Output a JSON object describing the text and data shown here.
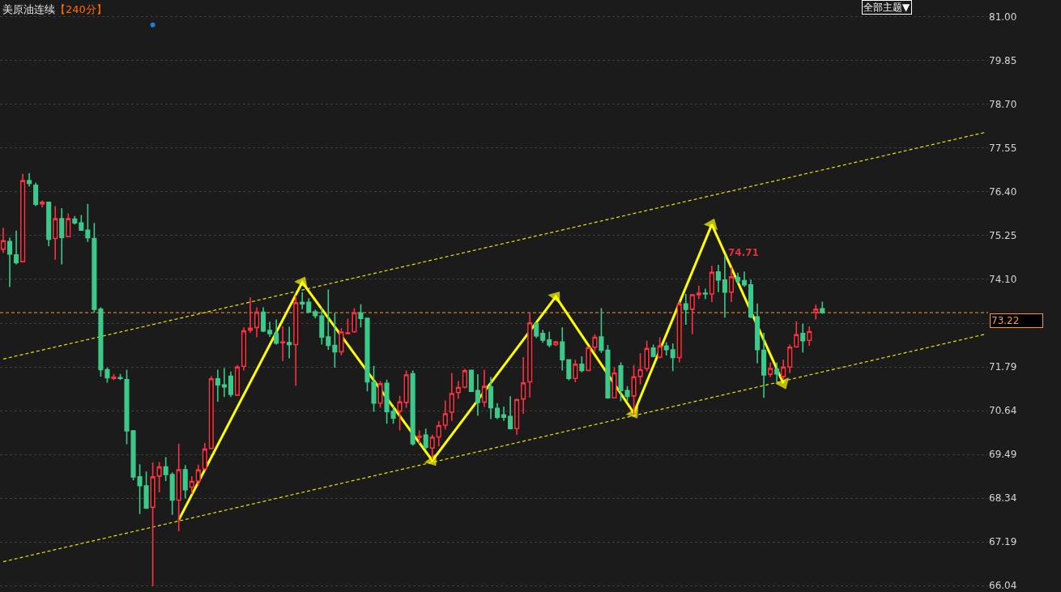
{
  "chart_data": {
    "type": "candlestick",
    "title": "美原油连续",
    "subtitle": "【240分】",
    "categories": [
      null,
      null,
      null,
      null,
      null,
      null,
      null,
      null,
      null,
      null,
      null,
      null,
      null,
      null,
      null,
      null,
      null,
      null,
      null,
      null,
      null,
      null,
      null,
      null,
      null,
      null,
      null,
      null,
      null,
      null,
      null,
      null,
      null,
      null,
      null,
      null,
      null,
      null,
      null,
      null,
      null,
      null,
      null,
      null,
      null,
      null,
      null,
      null,
      null,
      null,
      null,
      null,
      null,
      null,
      null,
      null,
      null,
      null,
      null,
      null,
      null,
      null,
      null,
      null,
      null,
      null,
      null,
      null,
      null,
      null,
      null,
      null,
      null,
      null,
      null,
      null,
      null,
      null,
      null,
      null,
      null,
      null,
      null,
      null,
      null,
      null,
      null,
      null,
      null,
      null,
      null,
      null,
      null,
      null,
      null,
      null,
      null,
      null,
      null,
      null,
      null,
      null,
      null,
      null,
      null,
      null,
      null,
      null,
      null,
      null,
      null,
      null,
      null,
      null,
      null,
      null,
      null,
      null,
      null,
      null,
      null,
      null,
      null,
      null,
      null,
      null,
      null,
      null,
      null,
      null,
      null,
      null,
      null,
      null,
      null,
      null,
      null,
      null,
      null,
      null,
      null,
      null,
      null,
      null,
      null,
      null,
      null,
      null,
      null,
      null,
      null,
      null
    ],
    "ohlc": [
      [
        74.89,
        75.45,
        74.79,
        75.11
      ],
      [
        75.09,
        75.19,
        73.9,
        74.76
      ],
      [
        74.74,
        75.38,
        74.49,
        74.54
      ],
      [
        74.56,
        76.87,
        74.54,
        76.69
      ],
      [
        76.69,
        76.89,
        76.54,
        76.62
      ],
      [
        76.57,
        76.64,
        76.02,
        76.07
      ],
      [
        76.08,
        76.17,
        75.99,
        76.12
      ],
      [
        76.12,
        76.12,
        74.97,
        75.15
      ],
      [
        75.17,
        76.02,
        74.61,
        75.69
      ],
      [
        75.69,
        75.97,
        74.49,
        75.2
      ],
      [
        75.22,
        75.83,
        75.2,
        75.69
      ],
      [
        75.68,
        75.76,
        75.54,
        75.58
      ],
      [
        75.58,
        75.79,
        75.38,
        75.39
      ],
      [
        75.39,
        76.08,
        75.08,
        75.19
      ],
      [
        75.17,
        75.58,
        73.22,
        73.31
      ],
      [
        73.31,
        73.36,
        71.54,
        71.72
      ],
      [
        71.72,
        71.78,
        71.38,
        71.51
      ],
      [
        71.49,
        71.61,
        71.45,
        71.52
      ],
      [
        71.51,
        71.61,
        71.45,
        71.49
      ],
      [
        71.46,
        71.72,
        69.76,
        70.11
      ],
      [
        70.11,
        70.13,
        68.81,
        68.9
      ],
      [
        68.9,
        69.23,
        67.92,
        68.67
      ],
      [
        68.66,
        69.04,
        68.06,
        68.08
      ],
      [
        68.1,
        69.28,
        66.02,
        68.9
      ],
      [
        68.92,
        69.29,
        68.49,
        69.16
      ],
      [
        69.16,
        69.42,
        68.79,
        68.96
      ],
      [
        68.96,
        69.02,
        67.9,
        68.29
      ],
      [
        68.29,
        69.77,
        67.47,
        69.09
      ],
      [
        69.09,
        69.21,
        68.33,
        68.56
      ],
      [
        68.63,
        68.92,
        68.45,
        68.78
      ],
      [
        68.79,
        69.22,
        68.66,
        69.08
      ],
      [
        69.11,
        69.79,
        69.08,
        69.63
      ],
      [
        69.65,
        71.55,
        69.64,
        71.48
      ],
      [
        71.48,
        71.72,
        70.88,
        71.32
      ],
      [
        71.32,
        71.76,
        71.0,
        71.27
      ],
      [
        71.55,
        71.67,
        71.0,
        71.07
      ],
      [
        71.05,
        71.84,
        71.03,
        71.79
      ],
      [
        71.81,
        72.83,
        71.7,
        72.74
      ],
      [
        72.76,
        73.62,
        72.69,
        72.81
      ],
      [
        72.83,
        73.36,
        72.57,
        73.23
      ],
      [
        73.23,
        73.36,
        72.71,
        72.74
      ],
      [
        72.75,
        72.98,
        72.58,
        72.67
      ],
      [
        72.67,
        73.04,
        72.38,
        72.42
      ],
      [
        72.43,
        72.86,
        71.95,
        72.45
      ],
      [
        72.43,
        72.85,
        72.02,
        72.38
      ],
      [
        72.38,
        73.67,
        71.3,
        73.48
      ],
      [
        73.49,
        73.76,
        73.31,
        73.45
      ],
      [
        73.49,
        73.6,
        73.21,
        73.24
      ],
      [
        73.24,
        73.3,
        73.07,
        73.14
      ],
      [
        73.13,
        73.37,
        72.38,
        72.58
      ],
      [
        72.58,
        73.83,
        72.24,
        72.36
      ],
      [
        72.36,
        73.21,
        71.77,
        72.19
      ],
      [
        72.19,
        72.81,
        72.1,
        72.71
      ],
      [
        72.67,
        73.06,
        72.67,
        72.69
      ],
      [
        72.72,
        73.34,
        72.69,
        73.21
      ],
      [
        73.21,
        73.44,
        72.83,
        73.07
      ],
      [
        73.07,
        73.09,
        71.15,
        71.4
      ],
      [
        71.39,
        71.82,
        70.61,
        70.84
      ],
      [
        70.84,
        71.42,
        70.72,
        71.35
      ],
      [
        71.36,
        71.46,
        70.3,
        70.62
      ],
      [
        70.62,
        70.75,
        70.3,
        70.45
      ],
      [
        70.63,
        71.03,
        70.12,
        70.87
      ],
      [
        70.86,
        71.7,
        70.72,
        71.58
      ],
      [
        71.61,
        71.7,
        69.72,
        69.77
      ],
      [
        69.94,
        70.12,
        69.77,
        69.97
      ],
      [
        70.0,
        70.17,
        69.63,
        69.68
      ],
      [
        69.66,
        70.01,
        69.36,
        69.94
      ],
      [
        69.95,
        70.37,
        69.7,
        70.25
      ],
      [
        70.26,
        70.91,
        70.15,
        70.56
      ],
      [
        70.6,
        71.63,
        70.37,
        71.09
      ],
      [
        71.12,
        71.42,
        70.95,
        71.25
      ],
      [
        71.26,
        71.74,
        71.23,
        71.69
      ],
      [
        71.7,
        71.72,
        71.14,
        71.15
      ],
      [
        71.17,
        71.6,
        70.51,
        70.86
      ],
      [
        70.87,
        71.72,
        70.74,
        71.28
      ],
      [
        71.27,
        71.53,
        70.42,
        70.72
      ],
      [
        70.7,
        70.84,
        70.42,
        70.47
      ],
      [
        70.53,
        70.75,
        70.37,
        70.47
      ],
      [
        70.49,
        71.02,
        70.15,
        70.17
      ],
      [
        70.17,
        70.96,
        70.01,
        70.93
      ],
      [
        70.95,
        72.05,
        70.56,
        71.37
      ],
      [
        71.4,
        73.21,
        70.99,
        72.95
      ],
      [
        72.93,
        72.97,
        72.55,
        72.61
      ],
      [
        72.67,
        72.77,
        72.43,
        72.5
      ],
      [
        72.5,
        72.72,
        72.31,
        72.37
      ],
      [
        72.38,
        72.48,
        72.34,
        72.45
      ],
      [
        72.45,
        72.83,
        71.7,
        71.98
      ],
      [
        71.98,
        71.99,
        71.44,
        71.49
      ],
      [
        71.49,
        71.98,
        71.39,
        71.86
      ],
      [
        71.86,
        72.07,
        71.65,
        71.7
      ],
      [
        71.7,
        72.3,
        71.68,
        72.3
      ],
      [
        72.31,
        72.65,
        72.19,
        72.57
      ],
      [
        72.58,
        73.34,
        72.16,
        72.23
      ],
      [
        72.23,
        72.37,
        70.96,
        70.98
      ],
      [
        70.98,
        71.79,
        70.97,
        71.63
      ],
      [
        71.82,
        71.91,
        70.89,
        71.17
      ],
      [
        71.17,
        71.29,
        70.89,
        71.02
      ],
      [
        71.03,
        71.84,
        70.54,
        71.53
      ],
      [
        71.54,
        72.15,
        71.33,
        71.72
      ],
      [
        71.75,
        72.48,
        71.67,
        72.28
      ],
      [
        72.29,
        72.38,
        72.05,
        72.07
      ],
      [
        72.05,
        72.57,
        72.02,
        72.34
      ],
      [
        72.34,
        72.44,
        72.09,
        72.25
      ],
      [
        72.24,
        72.41,
        71.68,
        72.04
      ],
      [
        72.04,
        73.51,
        71.91,
        73.44
      ],
      [
        73.45,
        73.71,
        72.9,
        73.31
      ],
      [
        73.31,
        73.71,
        72.65,
        73.69
      ],
      [
        73.69,
        73.93,
        73.58,
        73.73
      ],
      [
        73.73,
        73.85,
        73.58,
        73.71
      ],
      [
        73.71,
        74.45,
        73.5,
        74.28
      ],
      [
        74.29,
        74.48,
        73.76,
        74.08
      ],
      [
        74.08,
        74.71,
        73.09,
        73.76
      ],
      [
        73.76,
        74.41,
        73.5,
        74.16
      ],
      [
        74.14,
        74.27,
        73.99,
        74.06
      ],
      [
        74.06,
        74.3,
        73.9,
        73.95
      ],
      [
        73.95,
        74.09,
        73.07,
        73.11
      ],
      [
        73.11,
        73.46,
        71.89,
        72.25
      ],
      [
        72.23,
        72.69,
        70.98,
        71.58
      ],
      [
        71.6,
        71.91,
        71.53,
        71.75
      ],
      [
        71.73,
        71.91,
        71.39,
        71.61
      ],
      [
        71.54,
        71.98,
        71.46,
        71.79
      ],
      [
        71.79,
        72.38,
        71.63,
        72.31
      ],
      [
        72.32,
        72.99,
        72.3,
        72.64
      ],
      [
        72.67,
        72.93,
        72.17,
        72.48
      ],
      [
        72.49,
        72.86,
        72.35,
        72.72
      ],
      [
        73.23,
        73.43,
        73.04,
        73.31
      ],
      [
        73.32,
        73.51,
        73.19,
        73.22
      ],
      null,
      null,
      null,
      null,
      null,
      null,
      null,
      null,
      null,
      null,
      null,
      null,
      null,
      null,
      null,
      null,
      null,
      null,
      null,
      null,
      null,
      null,
      null,
      null,
      null
    ],
    "colors": [
      "#ff3040",
      "#3cc98a",
      "#3cc98a",
      "#ff3040",
      "#3cc98a",
      "#3cc98a",
      "#ff3040",
      "#3cc98a",
      "#ff3040",
      "#3cc98a",
      "#ff3040",
      "#3cc98a",
      "#3cc98a",
      "#3cc98a",
      "#3cc98a",
      "#3cc98a",
      "#3cc98a",
      "#ff3040",
      "#3cc98a",
      "#3cc98a",
      "#3cc98a",
      "#3cc98a",
      "#3cc98a",
      "#ff3040",
      "#ff3040",
      "#3cc98a",
      "#3cc98a",
      "#ff3040",
      "#3cc98a",
      "#ff3040",
      "#ff3040",
      "#ff3040",
      "#ff3040",
      "#3cc98a",
      "#3cc98a",
      "#3cc98a",
      "#ff3040",
      "#ff3040",
      "#ff3040",
      "#ff3040",
      "#3cc98a",
      "#3cc98a",
      "#3cc98a",
      "#ff3040",
      "#3cc98a",
      "#ff3040",
      "#3cc98a",
      "#3cc98a",
      "#3cc98a",
      "#3cc98a",
      "#3cc98a",
      "#3cc98a",
      "#ff3040",
      "#ff3040",
      "#ff3040",
      "#3cc98a",
      "#3cc98a",
      "#3cc98a",
      "#ff3040",
      "#3cc98a",
      "#3cc98a",
      "#ff3040",
      "#ff3040",
      "#3cc98a",
      "#ff3040",
      "#3cc98a",
      "#ff3040",
      "#ff3040",
      "#ff3040",
      "#ff3040",
      "#ff3040",
      "#ff3040",
      "#3cc98a",
      "#3cc98a",
      "#ff3040",
      "#3cc98a",
      "#3cc98a",
      "#3cc98a",
      "#3cc98a",
      "#ff3040",
      "#ff3040",
      "#ff3040",
      "#3cc98a",
      "#3cc98a",
      "#3cc98a",
      "#ff3040",
      "#3cc98a",
      "#3cc98a",
      "#ff3040",
      "#3cc98a",
      "#ff3040",
      "#ff3040",
      "#3cc98a",
      "#3cc98a",
      "#ff3040",
      "#3cc98a",
      "#3cc98a",
      "#ff3040",
      "#ff3040",
      "#ff3040",
      "#3cc98a",
      "#ff3040",
      "#3cc98a",
      "#3cc98a",
      "#ff3040",
      "#3cc98a",
      "#ff3040",
      "#ff3040",
      "#3cc98a",
      "#ff3040",
      "#3cc98a",
      "#3cc98a",
      "#ff3040",
      "#3cc98a",
      "#3cc98a",
      "#3cc98a",
      "#3cc98a",
      "#3cc98a",
      "#ff3040",
      "#3cc98a",
      "#ff3040",
      "#ff3040",
      "#ff3040",
      "#3cc98a",
      "#ff3040",
      "#ff3040",
      "#3cc98a",
      null,
      null,
      null,
      null,
      null,
      null,
      null,
      null,
      null,
      null,
      null,
      null,
      null,
      null,
      null,
      null,
      null,
      null,
      null,
      null,
      null,
      null,
      null,
      null,
      null
    ],
    "series": [
      {
        "type": "line",
        "color": "#e8e800",
        "line_style": "dashed",
        "values": [
          72.0,
          null,
          null,
          null,
          null,
          null,
          null,
          null,
          null,
          null,
          null,
          null,
          null,
          null,
          null,
          null,
          null,
          null,
          null,
          null,
          null,
          null,
          null,
          null,
          null,
          null,
          null,
          null,
          null,
          null,
          null,
          null,
          null,
          null,
          null,
          null,
          null,
          null,
          null,
          null,
          null,
          null,
          null,
          null,
          null,
          null,
          null,
          null,
          null,
          null,
          null,
          null,
          null,
          null,
          null,
          null,
          null,
          null,
          null,
          null,
          null,
          null,
          null,
          null,
          null,
          null,
          null,
          null,
          null,
          null,
          null,
          null,
          null,
          null,
          null,
          null,
          null,
          null,
          null,
          null,
          null,
          null,
          null,
          null,
          null,
          null,
          null,
          null,
          null,
          null,
          null,
          null,
          null,
          null,
          null,
          null,
          null,
          null,
          null,
          null,
          null,
          null,
          null,
          null,
          null,
          null,
          null,
          null,
          null,
          null,
          null,
          null,
          null,
          null,
          null,
          null,
          null,
          null,
          null,
          null,
          null,
          null,
          null,
          null,
          null,
          null,
          null,
          null,
          null,
          null,
          null,
          null,
          null,
          null,
          null,
          null,
          null,
          null,
          null,
          null,
          null,
          null,
          null,
          null,
          null,
          null,
          null,
          null,
          null,
          null,
          null,
          77.96
        ]
      },
      {
        "type": "line",
        "color": "#e8e800",
        "line_style": "dashed",
        "values": [
          66.67,
          null,
          null,
          null,
          null,
          null,
          null,
          null,
          null,
          null,
          null,
          null,
          null,
          null,
          null,
          null,
          null,
          null,
          null,
          null,
          null,
          null,
          null,
          null,
          null,
          null,
          null,
          null,
          null,
          null,
          null,
          null,
          null,
          null,
          null,
          null,
          null,
          null,
          null,
          null,
          null,
          null,
          null,
          null,
          null,
          null,
          null,
          null,
          null,
          null,
          null,
          null,
          null,
          null,
          null,
          null,
          null,
          null,
          null,
          null,
          null,
          null,
          null,
          null,
          null,
          null,
          null,
          null,
          null,
          null,
          null,
          null,
          null,
          null,
          null,
          null,
          null,
          null,
          null,
          null,
          null,
          null,
          null,
          null,
          null,
          null,
          null,
          null,
          null,
          null,
          null,
          null,
          null,
          null,
          null,
          null,
          null,
          null,
          null,
          null,
          null,
          null,
          null,
          null,
          null,
          null,
          null,
          null,
          null,
          null,
          null,
          null,
          null,
          null,
          null,
          null,
          null,
          null,
          null,
          null,
          null,
          null,
          null,
          null,
          null,
          null,
          null,
          null,
          null,
          null,
          null,
          null,
          null,
          null,
          null,
          null,
          null,
          null,
          null,
          null,
          null,
          null,
          null,
          null,
          null,
          null,
          null,
          null,
          null,
          null,
          null,
          72.65
        ]
      },
      {
        "type": "line",
        "color": "#ffff00",
        "line_style": "solid",
        "marker": "triangle",
        "values": [
          null,
          null,
          null,
          null,
          null,
          null,
          null,
          null,
          null,
          null,
          null,
          null,
          null,
          null,
          null,
          null,
          null,
          null,
          null,
          null,
          null,
          null,
          null,
          null,
          null,
          null,
          null,
          67.77,
          null,
          null,
          null,
          null,
          null,
          null,
          null,
          null,
          null,
          null,
          null,
          null,
          null,
          null,
          null,
          null,
          null,
          null,
          74.02,
          null,
          null,
          null,
          null,
          null,
          null,
          null,
          null,
          null,
          null,
          null,
          null,
          null,
          null,
          null,
          null,
          null,
          null,
          null,
          69.33,
          null,
          null,
          null,
          null,
          null,
          null,
          null,
          null,
          null,
          null,
          null,
          null,
          null,
          null,
          null,
          null,
          null,
          null,
          73.64,
          null,
          null,
          null,
          null,
          null,
          null,
          null,
          null,
          null,
          null,
          null,
          70.58,
          null,
          null,
          null,
          null,
          null,
          null,
          null,
          null,
          null,
          null,
          null,
          75.54,
          null,
          null,
          null,
          null,
          null,
          null,
          null,
          null,
          null,
          null,
          71.36,
          null,
          null,
          null,
          null,
          null,
          null,
          null,
          null,
          null,
          null,
          null,
          null,
          null,
          null,
          null,
          null,
          null,
          null,
          null,
          null,
          null,
          null,
          null,
          null,
          null,
          null,
          null,
          null,
          null,
          null,
          null
        ]
      },
      {
        "type": "scatter",
        "color": "#1e7bd8",
        "marker": "circle",
        "values": [
          null,
          null,
          null,
          null,
          null,
          null,
          null,
          null,
          null,
          null,
          null,
          null,
          null,
          null,
          null,
          null,
          null,
          null,
          null,
          null,
          null,
          null,
          null,
          80.79,
          null,
          null,
          null,
          null,
          null,
          null,
          null,
          null,
          null,
          null,
          null,
          null,
          null,
          null,
          null,
          null,
          null,
          null,
          null,
          null,
          null,
          null,
          null,
          null,
          null,
          null,
          null,
          null,
          null,
          null,
          null,
          null,
          null,
          null,
          null,
          null,
          null,
          null,
          null,
          null,
          null,
          null,
          null,
          null,
          null,
          null,
          null,
          null,
          null,
          null,
          null,
          null,
          null,
          null,
          null,
          null,
          null,
          null,
          null,
          null,
          null,
          null,
          null,
          null,
          null,
          null,
          null,
          null,
          null,
          null,
          null,
          null,
          null,
          null,
          null,
          null,
          null,
          null,
          null,
          null,
          null,
          null,
          null,
          null,
          null,
          null,
          null,
          null,
          null,
          null,
          null,
          null,
          null,
          null,
          null,
          null,
          null,
          null,
          null,
          null,
          null,
          null,
          null,
          null,
          null,
          null,
          null,
          null,
          null,
          null,
          null,
          null,
          null,
          null,
          null,
          null,
          null,
          null,
          null,
          null,
          null,
          null,
          null,
          null,
          null,
          null,
          null,
          null
        ]
      }
    ],
    "ylim": [
      66.0,
      81.06
    ],
    "yticks": [
      {
        "value": 81,
        "label": "81.00"
      },
      79.85,
      {
        "value": 78.7,
        "label": "78.70"
      },
      77.55,
      {
        "value": 76.4,
        "label": "76.40"
      },
      75.25,
      {
        "value": 74.1,
        "label": "74.10"
      },
      {
        "value": 72.94,
        "label": null
      },
      71.79,
      70.64,
      69.49,
      68.34,
      67.19,
      66.04
    ],
    "ref_lines": [
      {
        "axis": "y",
        "value": 73.22,
        "label": "73.22",
        "color": "#ff9933",
        "line_style": "dashed"
      }
    ],
    "annotations": [
      "74.71",
      "全部主题▼"
    ],
    "grid": "y",
    "tick_labels": "y"
  }
}
